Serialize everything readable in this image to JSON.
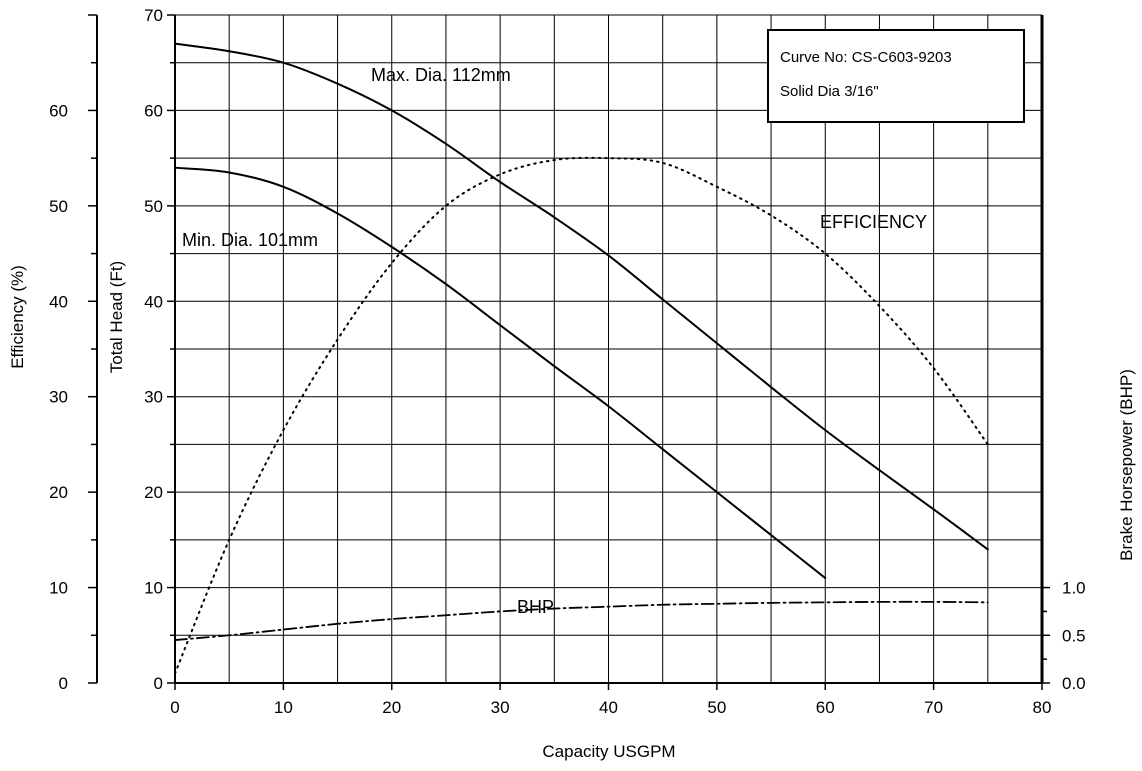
{
  "chart_data": {
    "type": "line",
    "title": "",
    "xlabel": "Capacity USGPM",
    "ylabel_head": "Total Head (Ft)",
    "ylabel_efficiency": "Efficiency (%)",
    "ylabel_bhp": "Brake Horsepower (BHP)",
    "xlim": [
      0,
      80
    ],
    "ylim_head": [
      0,
      70
    ],
    "ylim_efficiency": [
      0,
      70
    ],
    "ylim_bhp": [
      0,
      7
    ],
    "x_ticks": [
      "0",
      "10",
      "20",
      "30",
      "40",
      "50",
      "60",
      "70",
      "80"
    ],
    "head_ticks": [
      "0",
      "10",
      "20",
      "30",
      "40",
      "50",
      "60",
      "70"
    ],
    "efficiency_ticks": [
      "0",
      "10",
      "20",
      "30",
      "40",
      "50",
      "60"
    ],
    "bhp_ticks": [
      "0.0",
      "0.5",
      "1.0"
    ],
    "grid": true,
    "legend_box": {
      "line1": "Curve No: CS-C603-9203",
      "line2": "Solid Dia 3/16\""
    },
    "series": [
      {
        "name": "Max. Dia. 112mm",
        "axis": "head",
        "style": "solid",
        "x": [
          0,
          5,
          10,
          15,
          20,
          25,
          30,
          35,
          40,
          45,
          50,
          55,
          60,
          65,
          70,
          75
        ],
        "y": [
          67,
          66.2,
          65,
          62.8,
          60,
          56.5,
          52.5,
          48.8,
          44.8,
          40.2,
          35.6,
          31,
          26.5,
          22.3,
          18.2,
          14
        ]
      },
      {
        "name": "Min. Dia. 101mm",
        "axis": "head",
        "style": "solid",
        "x": [
          0,
          5,
          10,
          15,
          20,
          25,
          30,
          35,
          40,
          45,
          50,
          55,
          60
        ],
        "y": [
          54,
          53.5,
          52,
          49.2,
          45.7,
          41.8,
          37.5,
          33.2,
          29,
          24.5,
          20,
          15.5,
          11
        ]
      },
      {
        "name": "EFFICIENCY",
        "axis": "efficiency",
        "style": "dotted",
        "x": [
          0,
          5,
          10,
          15,
          20,
          25,
          30,
          35,
          40,
          45,
          50,
          55,
          60,
          65,
          70,
          75
        ],
        "y": [
          1,
          15,
          26.5,
          36,
          44,
          50,
          53.3,
          54.8,
          55,
          54.5,
          52,
          49,
          45,
          39.5,
          33,
          25
        ]
      },
      {
        "name": "BHP",
        "axis": "bhp",
        "style": "dashdot",
        "x": [
          0,
          5,
          10,
          15,
          20,
          25,
          30,
          35,
          40,
          45,
          50,
          55,
          60,
          65,
          70,
          75
        ],
        "y": [
          0.45,
          0.5,
          0.56,
          0.62,
          0.67,
          0.71,
          0.75,
          0.78,
          0.8,
          0.82,
          0.83,
          0.84,
          0.845,
          0.85,
          0.85,
          0.845
        ]
      }
    ],
    "annotations": [
      {
        "text": "Max. Dia. 112mm",
        "series": 0
      },
      {
        "text": "Min. Dia. 101mm",
        "series": 1
      },
      {
        "text": "EFFICIENCY",
        "series": 2
      },
      {
        "text": "BHP",
        "series": 3
      }
    ]
  }
}
